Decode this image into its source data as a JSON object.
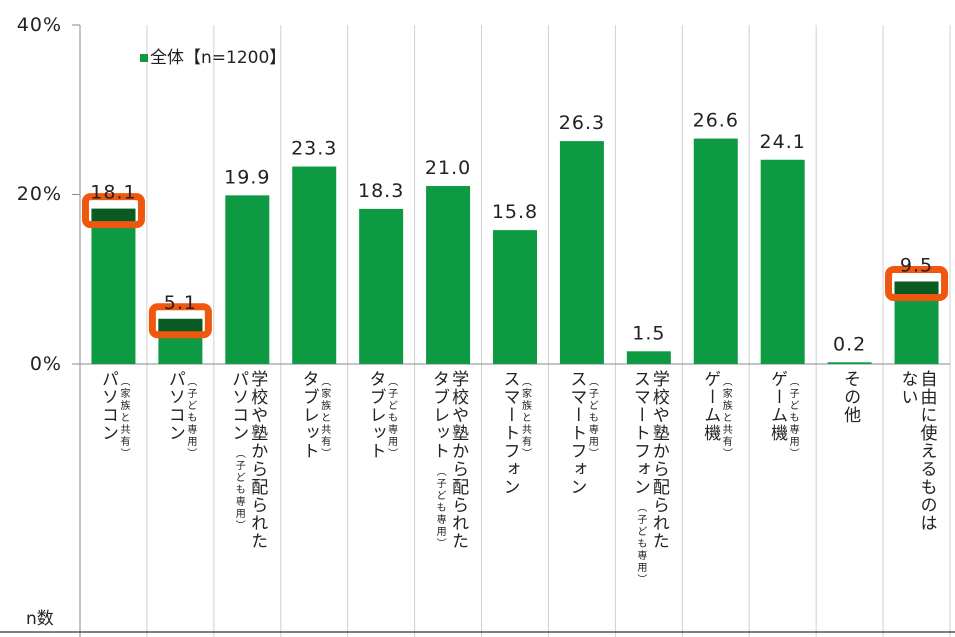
{
  "chart_data": {
    "type": "bar",
    "legend": "全体【n=1200】",
    "legend_position": "top-left",
    "bar_color": "#0e9a43",
    "highlight_color": "#f0570e",
    "highlight_fill": "#0a5b22",
    "yticks": [
      "40%",
      "20%",
      "0%"
    ],
    "ylim": [
      0,
      40
    ],
    "grid": "vertical category separators",
    "n_label": "n数",
    "categories": [
      {
        "main": "パソコン",
        "note": "（家族と共有）"
      },
      {
        "main": "パソコン",
        "note": "（子ども専用）"
      },
      {
        "main": "学校や塾から配られた",
        "cols": [
          "学校や塾から配られた",
          "パソコン"
        ],
        "note": "（子ども専用）"
      },
      {
        "main": "タブレット",
        "note": "（家族と共有）"
      },
      {
        "main": "タブレット",
        "note": "（子ども専用）"
      },
      {
        "main": "学校や塾から配られた",
        "cols": [
          "学校や塾から配られた",
          "タブレット"
        ],
        "note": "（子ども専用）"
      },
      {
        "main": "スマートフォン",
        "note": "（家族と共有）"
      },
      {
        "main": "スマートフォン",
        "note": "（子ども専用）"
      },
      {
        "main": "学校や塾から配られた",
        "cols": [
          "学校や塾から配られた",
          "スマートフォン"
        ],
        "note": "（子ども専用）"
      },
      {
        "main": "ゲーム機",
        "note": "（家族と共有）"
      },
      {
        "main": "ゲーム機",
        "note": "（子ども専用）"
      },
      {
        "main": "その他"
      },
      {
        "main": "自由に使えるものはない",
        "cols": [
          "自由に使えるものは",
          "ない"
        ]
      }
    ],
    "values": [
      18.1,
      5.1,
      19.9,
      23.3,
      18.3,
      21.0,
      15.8,
      26.3,
      1.5,
      26.6,
      24.1,
      0.2,
      9.5
    ],
    "value_labels": [
      "18.1",
      "5.1",
      "19.9",
      "23.3",
      "18.3",
      "21.0",
      "15.8",
      "26.3",
      "1.5",
      "26.6",
      "24.1",
      "0.2",
      "9.5"
    ],
    "highlighted": [
      0,
      1,
      12
    ]
  }
}
